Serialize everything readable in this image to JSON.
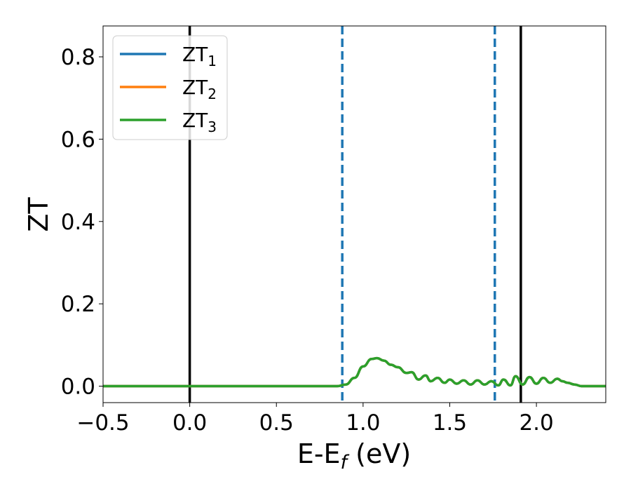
{
  "chart_data": {
    "type": "line",
    "title": "",
    "xlabel_main": "E-E",
    "xlabel_sub": "f",
    "xlabel_tail": " (eV)",
    "ylabel": "ZT",
    "xlim": [
      -0.5,
      2.4
    ],
    "ylim": [
      -0.04,
      0.875
    ],
    "xticks": [
      -0.5,
      0.0,
      0.5,
      1.0,
      1.5,
      2.0
    ],
    "xtick_labels": [
      "−0.5",
      "0.0",
      "0.5",
      "1.0",
      "1.5",
      "2.0"
    ],
    "yticks": [
      0.0,
      0.2,
      0.4,
      0.6,
      0.8
    ],
    "ytick_labels": [
      "0.0",
      "0.2",
      "0.4",
      "0.6",
      "0.8"
    ],
    "grid": false,
    "legend_position": "top-left",
    "series": [
      {
        "name_main": "ZT",
        "name_sub": "1",
        "color": "#1f77b4",
        "x": [
          -0.5,
          0.0,
          0.5,
          0.85,
          0.9,
          0.95,
          1.0,
          1.05,
          1.08,
          1.12,
          1.16,
          1.2,
          1.25,
          1.28,
          1.32,
          1.36,
          1.39,
          1.43,
          1.47,
          1.5,
          1.54,
          1.58,
          1.62,
          1.66,
          1.7,
          1.74,
          1.78,
          1.81,
          1.85,
          1.88,
          1.92,
          1.96,
          2.0,
          2.04,
          2.08,
          2.12,
          2.15,
          2.18,
          2.22,
          2.26,
          2.3,
          2.35,
          2.4
        ],
        "y": [
          0.0,
          0.0,
          0.0,
          0.0,
          0.004,
          0.02,
          0.048,
          0.066,
          0.068,
          0.062,
          0.052,
          0.046,
          0.032,
          0.034,
          0.016,
          0.026,
          0.012,
          0.02,
          0.008,
          0.016,
          0.006,
          0.014,
          0.004,
          0.014,
          0.004,
          0.012,
          0.002,
          0.016,
          0.002,
          0.024,
          0.004,
          0.022,
          0.006,
          0.02,
          0.008,
          0.018,
          0.012,
          0.008,
          0.004,
          0.0,
          0.0,
          0.0,
          0.0
        ]
      },
      {
        "name_main": "ZT",
        "name_sub": "2",
        "color": "#ff7f0e",
        "x": [
          -0.5,
          0.0,
          0.5,
          0.85,
          0.9,
          0.95,
          1.0,
          1.05,
          1.08,
          1.12,
          1.16,
          1.2,
          1.25,
          1.28,
          1.32,
          1.36,
          1.39,
          1.43,
          1.47,
          1.5,
          1.54,
          1.58,
          1.62,
          1.66,
          1.7,
          1.74,
          1.78,
          1.81,
          1.85,
          1.88,
          1.92,
          1.96,
          2.0,
          2.04,
          2.08,
          2.12,
          2.15,
          2.18,
          2.22,
          2.26,
          2.3,
          2.35,
          2.4
        ],
        "y": [
          0.0,
          0.0,
          0.0,
          0.0,
          0.004,
          0.02,
          0.048,
          0.066,
          0.068,
          0.062,
          0.052,
          0.046,
          0.032,
          0.034,
          0.016,
          0.026,
          0.012,
          0.02,
          0.008,
          0.016,
          0.006,
          0.014,
          0.004,
          0.014,
          0.004,
          0.012,
          0.002,
          0.016,
          0.002,
          0.024,
          0.004,
          0.022,
          0.006,
          0.02,
          0.008,
          0.018,
          0.012,
          0.008,
          0.004,
          0.0,
          0.0,
          0.0,
          0.0
        ]
      },
      {
        "name_main": "ZT",
        "name_sub": "3",
        "color": "#2ca02c",
        "x": [
          -0.5,
          0.0,
          0.5,
          0.85,
          0.9,
          0.95,
          1.0,
          1.05,
          1.08,
          1.12,
          1.16,
          1.2,
          1.25,
          1.28,
          1.32,
          1.36,
          1.39,
          1.43,
          1.47,
          1.5,
          1.54,
          1.58,
          1.62,
          1.66,
          1.7,
          1.74,
          1.78,
          1.81,
          1.85,
          1.88,
          1.92,
          1.96,
          2.0,
          2.04,
          2.08,
          2.12,
          2.15,
          2.18,
          2.22,
          2.26,
          2.3,
          2.35,
          2.4
        ],
        "y": [
          0.0,
          0.0,
          0.0,
          0.0,
          0.004,
          0.02,
          0.048,
          0.066,
          0.068,
          0.062,
          0.052,
          0.046,
          0.032,
          0.034,
          0.016,
          0.026,
          0.012,
          0.02,
          0.008,
          0.016,
          0.006,
          0.014,
          0.004,
          0.014,
          0.004,
          0.012,
          0.002,
          0.016,
          0.002,
          0.024,
          0.004,
          0.022,
          0.006,
          0.02,
          0.008,
          0.018,
          0.012,
          0.008,
          0.004,
          0.0,
          0.0,
          0.0,
          0.0
        ]
      }
    ],
    "vertical_lines": [
      {
        "x": 0.0,
        "color": "#000000",
        "style": "solid"
      },
      {
        "x": 1.91,
        "color": "#000000",
        "style": "solid"
      },
      {
        "x": 0.88,
        "color": "#1f77b4",
        "style": "dashed"
      },
      {
        "x": 1.76,
        "color": "#1f77b4",
        "style": "dashed"
      }
    ]
  }
}
